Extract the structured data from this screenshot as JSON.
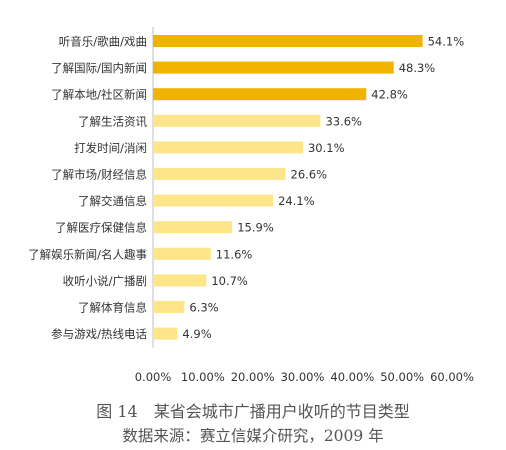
{
  "chart_data": {
    "type": "bar",
    "orientation": "horizontal",
    "categories": [
      "听音乐/歌曲/戏曲",
      "了解国际/国内新闻",
      "了解本地/社区新闻",
      "了解生活资讯",
      "打发时间/消闲",
      "了解市场/财经信息",
      "了解交通信息",
      "了解医疗保健信息",
      "了解娱乐新闻/名人趣事",
      "收听小说/广播剧",
      "了解体育信息",
      "参与游戏/热线电话"
    ],
    "values": [
      54.1,
      48.3,
      42.8,
      33.6,
      30.1,
      26.6,
      24.1,
      15.9,
      11.6,
      10.7,
      6.3,
      4.9
    ],
    "value_labels": [
      "54.1%",
      "48.3%",
      "42.8%",
      "33.6%",
      "30.1%",
      "26.6%",
      "24.1%",
      "15.9%",
      "11.6%",
      "10.7%",
      "6.3%",
      "4.9%"
    ],
    "bar_colors": [
      "#F0B400",
      "#F0B400",
      "#F0B400",
      "#FDE58A",
      "#FDE58A",
      "#FDE58A",
      "#FDE58A",
      "#FDE58A",
      "#FDE58A",
      "#FDE58A",
      "#FDE58A",
      "#FDE58A"
    ],
    "xlim": [
      0,
      60
    ],
    "x_ticks": [
      0,
      10,
      20,
      30,
      40,
      50,
      60
    ],
    "x_tick_labels": [
      "0.00%",
      "10.00%",
      "20.00%",
      "30.00%",
      "40.00%",
      "50.00%",
      "60.00%"
    ],
    "grid": false,
    "legend": "none"
  },
  "caption": {
    "title": "图 14　某省会城市广播用户收听的节目类型",
    "source": "数据来源：赛立信媒介研究，2009 年"
  }
}
